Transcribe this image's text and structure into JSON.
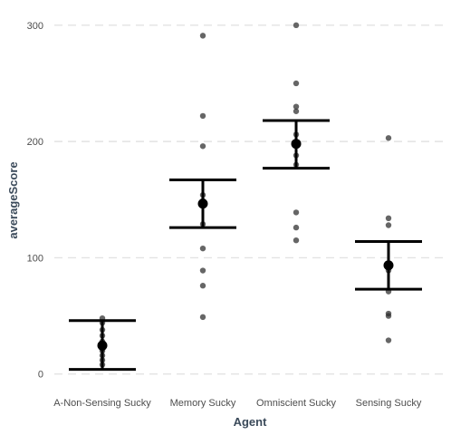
{
  "chart_data": {
    "type": "scatter",
    "title": "",
    "xlabel": "Agent",
    "ylabel": "averageScore",
    "categories": [
      "A-Non-Sensing Sucky",
      "Memory Sucky",
      "Omniscient Sucky",
      "Sensing Sucky"
    ],
    "ylim": [
      -8,
      310
    ],
    "yticks": [
      0,
      100,
      200,
      300
    ],
    "grid": true,
    "raw_points": [
      [
        48,
        44,
        38,
        33,
        28,
        25,
        22,
        20,
        16,
        12,
        8
      ],
      [
        291,
        222,
        196,
        154,
        149,
        129,
        108,
        89,
        76,
        49
      ],
      [
        300,
        250,
        230,
        226,
        206,
        197,
        188,
        180,
        139,
        126,
        115
      ],
      [
        203,
        134,
        128,
        95,
        92,
        89,
        71,
        52,
        50,
        29
      ]
    ],
    "summary": {
      "mean": [
        24.5,
        146.5,
        198,
        93.5
      ],
      "ci_low": [
        4,
        126,
        177,
        73
      ],
      "ci_high": [
        46,
        167,
        218,
        114
      ]
    },
    "colors": {
      "points": "#2b2b2b",
      "summary": "#000000",
      "grid": "#e3e3e3"
    }
  }
}
